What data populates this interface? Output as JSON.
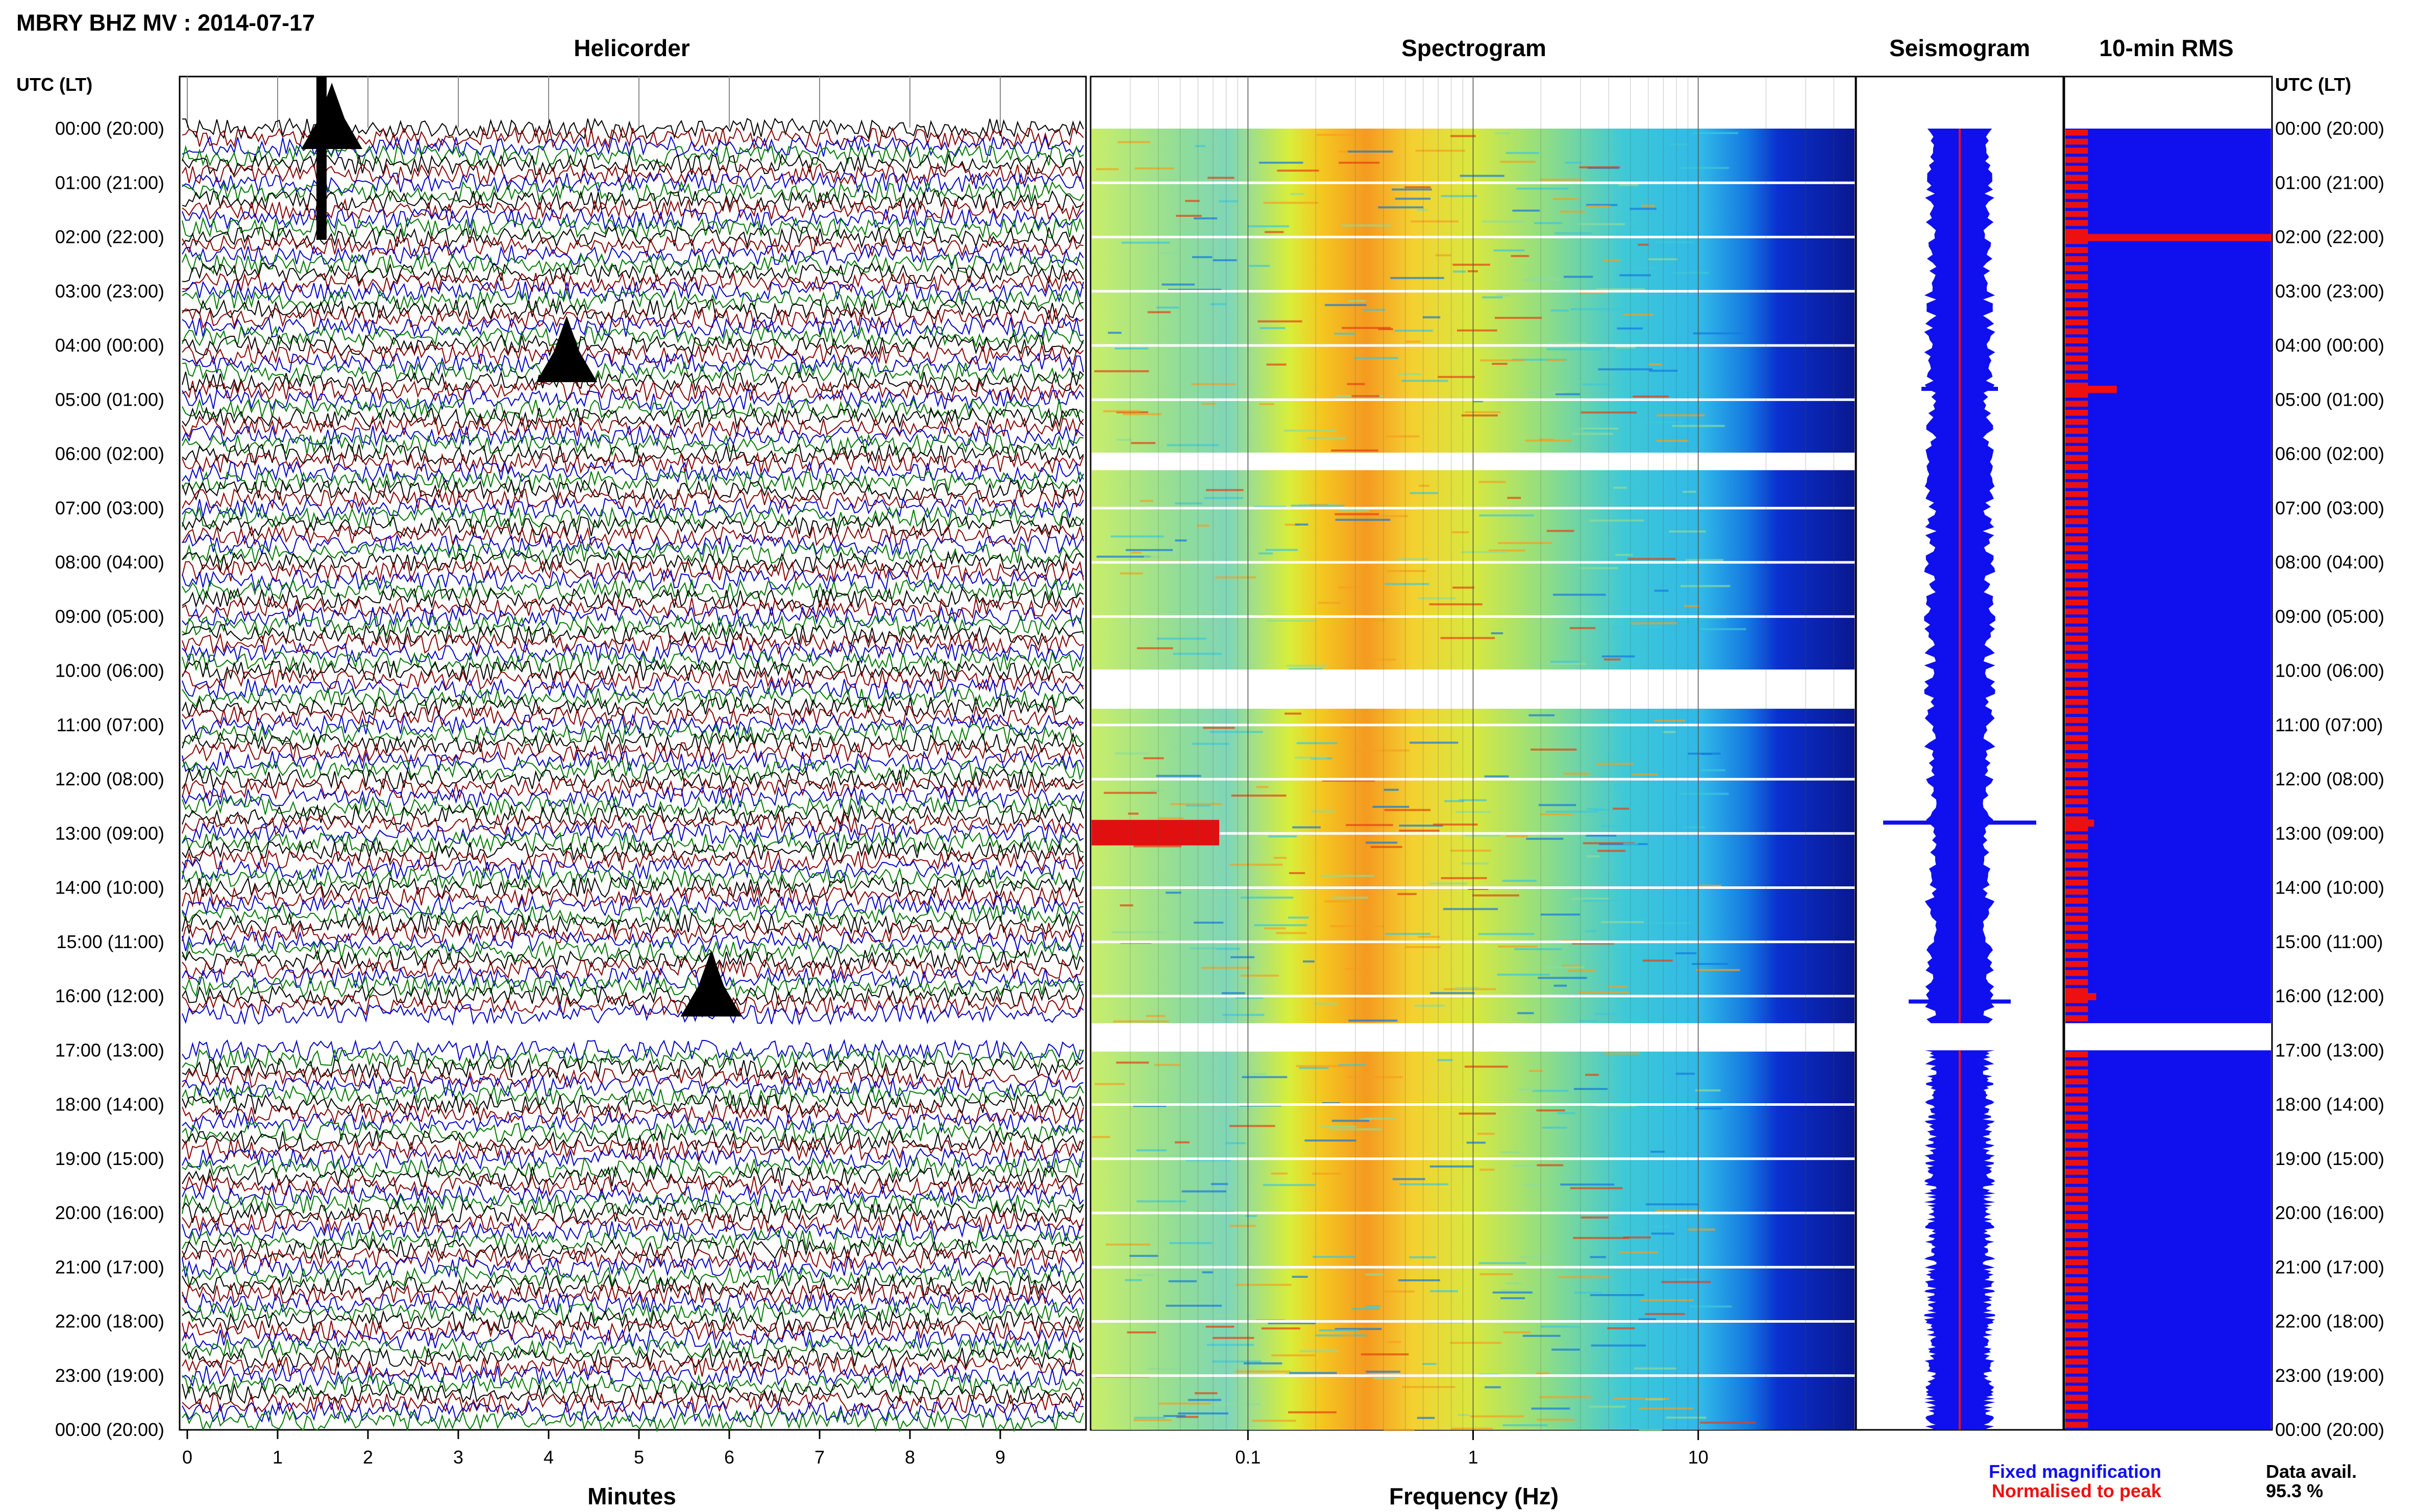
{
  "header": {
    "title": "MBRY BHZ MV : 2014-07-17"
  },
  "panels": {
    "helicorder": "Helicorder",
    "spectrogram": "Spectrogram",
    "seismogram": "Seismogram",
    "rms": "10-min RMS"
  },
  "time_axis": {
    "left_header": "UTC (LT)",
    "right_header": "UTC (LT)",
    "labels": [
      "00:00 (20:00)",
      "01:00 (21:00)",
      "02:00 (22:00)",
      "03:00 (23:00)",
      "04:00 (00:00)",
      "05:00 (01:00)",
      "06:00 (02:00)",
      "07:00 (03:00)",
      "08:00 (04:00)",
      "09:00 (05:00)",
      "10:00 (06:00)",
      "11:00 (07:00)",
      "12:00 (08:00)",
      "13:00 (09:00)",
      "14:00 (10:00)",
      "15:00 (11:00)",
      "16:00 (12:00)",
      "17:00 (13:00)",
      "18:00 (14:00)",
      "19:00 (15:00)",
      "20:00 (16:00)",
      "21:00 (17:00)",
      "22:00 (18:00)",
      "23:00 (19:00)",
      "00:00 (20:00)"
    ]
  },
  "legend": {
    "fixed": "Fixed magnification",
    "normalised": "Normalised to peak",
    "fixed_color": "#1010ee",
    "normalised_color": "#ee1010"
  },
  "availability": {
    "label": "Data avail.",
    "value": "95.3 %"
  },
  "chart_data": [
    {
      "type": "line",
      "name": "helicorder",
      "xlabel": "Minutes",
      "ylabel": "UTC (LT)",
      "x_ticks": [
        "0",
        "1",
        "2",
        "3",
        "4",
        "5",
        "6",
        "7",
        "8",
        "9"
      ],
      "xlim": [
        0,
        10
      ],
      "ylim": [
        0,
        24
      ],
      "trace_colors": [
        "#000000",
        "#8b0000",
        "#0000cd",
        "#007a00"
      ],
      "gaps_hours": [
        [
          16.5,
          17.0
        ]
      ],
      "events": [
        {
          "hour": 0.0,
          "minute": 1.6,
          "label": ""
        },
        {
          "hour": 4.3,
          "minute": 4.2,
          "label": ""
        },
        {
          "hour": 16.0,
          "minute": 5.8,
          "label": ""
        }
      ]
    },
    {
      "type": "heatmap",
      "name": "spectrogram",
      "xlabel": "Frequency (Hz)",
      "x_scale": "log",
      "xlim": [
        0.02,
        50
      ],
      "x_ticks": [
        "0.1",
        "1",
        "10"
      ],
      "x_tick_values": [
        0.1,
        1,
        10
      ],
      "ylim": [
        0,
        24
      ],
      "gaps_hours": [
        [
          6.0,
          6.3
        ],
        [
          10.0,
          10.7
        ],
        [
          16.5,
          17.0
        ]
      ]
    },
    {
      "type": "line",
      "name": "seismogram",
      "ylim": [
        0,
        24
      ],
      "series_colors": [
        "#1010ee",
        "#ee1010"
      ],
      "gaps_hours": [
        [
          16.5,
          17.0
        ]
      ]
    },
    {
      "type": "bar",
      "name": "rms",
      "ylim": [
        0,
        24
      ],
      "bar_color": "#ee1010",
      "background_color": "#1010ee",
      "gaps_hours": [
        [
          16.5,
          17.0
        ]
      ],
      "spikes": [
        {
          "hour": 2.0,
          "value": 1.0
        },
        {
          "hour": 4.8,
          "value": 0.25
        },
        {
          "hour": 12.8,
          "value": 0.14
        },
        {
          "hour": 16.0,
          "value": 0.15
        }
      ],
      "baseline": 0.11
    }
  ]
}
